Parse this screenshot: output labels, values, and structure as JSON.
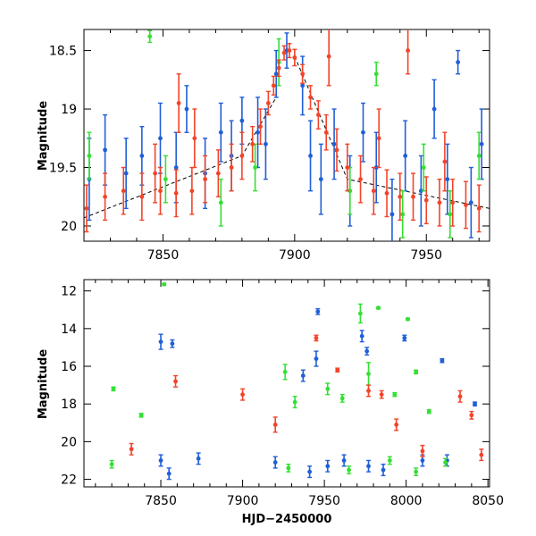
{
  "chart_data": [
    {
      "type": "scatter",
      "title": "",
      "xlabel": "",
      "ylabel": "Magnitude",
      "xlim": [
        7820,
        7974
      ],
      "ylim": [
        20.13,
        18.32
      ],
      "y_inverted": true,
      "x_ticks": [
        7850,
        7900,
        7950
      ],
      "y_ticks": [
        18.5,
        19,
        19.5,
        20
      ],
      "y_tick_labels": [
        "18.5",
        "19",
        "19.5",
        "20"
      ],
      "colors": {
        "blue": "#1f5fd8",
        "green": "#33e033",
        "red": "#f2442a"
      },
      "series": [
        {
          "color": "blue",
          "points": [
            [
              7822,
              19.6,
              0.35
            ],
            [
              7828,
              19.35,
              0.3
            ],
            [
              7836,
              19.55,
              0.3
            ],
            [
              7842,
              19.4,
              0.25
            ],
            [
              7849,
              19.25,
              0.3
            ],
            [
              7855,
              19.5,
              0.3
            ],
            [
              7859,
              19.0,
              0.2
            ],
            [
              7866,
              19.55,
              0.3
            ],
            [
              7872,
              19.2,
              0.25
            ],
            [
              7876,
              19.4,
              0.3
            ],
            [
              7880,
              19.1,
              0.2
            ],
            [
              7886,
              19.2,
              0.3
            ],
            [
              7889,
              19.3,
              0.3
            ],
            [
              7893,
              18.7,
              0.2
            ],
            [
              7897,
              18.5,
              0.15
            ],
            [
              7903,
              18.8,
              0.25
            ],
            [
              7906,
              19.4,
              0.3
            ],
            [
              7910,
              19.6,
              0.3
            ],
            [
              7915,
              19.3,
              0.3
            ],
            [
              7921,
              19.7,
              0.3
            ],
            [
              7926,
              19.2,
              0.25
            ],
            [
              7931,
              19.5,
              0.3
            ],
            [
              7937,
              19.9,
              0.3
            ],
            [
              7942,
              19.4,
              0.3
            ],
            [
              7948,
              19.7,
              0.3
            ],
            [
              7953,
              19.0,
              0.25
            ],
            [
              7958,
              19.6,
              0.3
            ],
            [
              7962,
              18.6,
              0.1
            ],
            [
              7967,
              19.8,
              0.3
            ],
            [
              7971,
              19.3,
              0.3
            ]
          ]
        },
        {
          "color": "green",
          "points": [
            [
              7845,
              18.38,
              0.05
            ],
            [
              7822,
              19.4,
              0.2
            ],
            [
              7851,
              19.6,
              0.2
            ],
            [
              7872,
              19.8,
              0.2
            ],
            [
              7885,
              19.5,
              0.2
            ],
            [
              7894,
              18.6,
              0.2
            ],
            [
              7921,
              19.7,
              0.2
            ],
            [
              7931,
              18.7,
              0.1
            ],
            [
              7941,
              19.9,
              0.2
            ],
            [
              7949,
              19.5,
              0.2
            ],
            [
              7959,
              19.9,
              0.2
            ],
            [
              7970,
              19.4,
              0.2
            ]
          ]
        },
        {
          "color": "red",
          "points": [
            [
              7821,
              19.85,
              0.2
            ],
            [
              7828,
              19.75,
              0.2
            ],
            [
              7835,
              19.7,
              0.2
            ],
            [
              7842,
              19.75,
              0.2
            ],
            [
              7849,
              19.7,
              0.2
            ],
            [
              7855,
              19.72,
              0.2
            ],
            [
              7861,
              19.7,
              0.2
            ],
            [
              7866,
              19.6,
              0.2
            ],
            [
              7871,
              19.55,
              0.2
            ],
            [
              7876,
              19.5,
              0.2
            ],
            [
              7880,
              19.4,
              0.2
            ],
            [
              7884,
              19.3,
              0.15
            ],
            [
              7887,
              19.15,
              0.15
            ],
            [
              7890,
              18.95,
              0.1
            ],
            [
              7892,
              18.8,
              0.08
            ],
            [
              7894,
              18.65,
              0.07
            ],
            [
              7896,
              18.52,
              0.06
            ],
            [
              7898,
              18.5,
              0.06
            ],
            [
              7900,
              18.56,
              0.07
            ],
            [
              7903,
              18.7,
              0.08
            ],
            [
              7906,
              18.9,
              0.1
            ],
            [
              7909,
              19.05,
              0.12
            ],
            [
              7912,
              19.2,
              0.15
            ],
            [
              7916,
              19.35,
              0.18
            ],
            [
              7920,
              19.5,
              0.2
            ],
            [
              7925,
              19.6,
              0.2
            ],
            [
              7930,
              19.7,
              0.2
            ],
            [
              7935,
              19.72,
              0.2
            ],
            [
              7940,
              19.75,
              0.2
            ],
            [
              7945,
              19.75,
              0.2
            ],
            [
              7950,
              19.78,
              0.2
            ],
            [
              7955,
              19.8,
              0.2
            ],
            [
              7960,
              19.8,
              0.2
            ],
            [
              7965,
              19.82,
              0.2
            ],
            [
              7970,
              19.85,
              0.2
            ],
            [
              7862,
              19.25,
              0.25
            ],
            [
              7856,
              18.95,
              0.25
            ],
            [
              7847,
              19.55,
              0.25
            ],
            [
              7913,
              18.55,
              0.25
            ],
            [
              7943,
              18.5,
              0.2
            ],
            [
              7932,
              19.25,
              0.25
            ],
            [
              7957,
              19.45,
              0.25
            ]
          ]
        }
      ]
    },
    {
      "type": "scatter",
      "title": "",
      "xlabel": "HJD−2450000",
      "ylabel": "Magnitude",
      "xlim": [
        7803,
        8051
      ],
      "ylim": [
        22.4,
        11.4
      ],
      "y_inverted": true,
      "x_ticks": [
        7850,
        7900,
        7950,
        8000,
        8050
      ],
      "y_ticks": [
        12,
        14,
        16,
        18,
        20,
        22
      ],
      "colors": {
        "blue": "#1f5fd8",
        "green": "#33e033",
        "red": "#f2442a"
      },
      "series": [
        {
          "color": "blue",
          "points": [
            [
              7850,
              14.7,
              0.4
            ],
            [
              7857,
              14.8,
              0.2
            ],
            [
              7946,
              13.1,
              0.15
            ],
            [
              7973,
              14.4,
              0.3
            ],
            [
              7976,
              15.2,
              0.2
            ],
            [
              7999,
              14.5,
              0.15
            ],
            [
              8022,
              15.7,
              0.1
            ],
            [
              8042,
              18.0,
              0.1
            ],
            [
              7937,
              16.5,
              0.3
            ],
            [
              7945,
              15.6,
              0.4
            ],
            [
              7850,
              21.0,
              0.3
            ],
            [
              7855,
              21.7,
              0.3
            ],
            [
              7873,
              20.9,
              0.3
            ],
            [
              7920,
              21.1,
              0.3
            ],
            [
              7941,
              21.6,
              0.3
            ],
            [
              7952,
              21.3,
              0.3
            ],
            [
              7962,
              21.0,
              0.3
            ],
            [
              7977,
              21.3,
              0.3
            ],
            [
              7986,
              21.5,
              0.3
            ],
            [
              8010,
              21.0,
              0.3
            ],
            [
              8025,
              21.0,
              0.3
            ]
          ]
        },
        {
          "color": "green",
          "points": [
            [
              7852,
              11.65,
              0.05
            ],
            [
              7821,
              17.2,
              0.1
            ],
            [
              7838,
              18.6,
              0.1
            ],
            [
              7926,
              16.3,
              0.4
            ],
            [
              7932,
              17.9,
              0.3
            ],
            [
              7952,
              17.2,
              0.3
            ],
            [
              7961,
              17.7,
              0.2
            ],
            [
              7972,
              13.2,
              0.5
            ],
            [
              7977,
              16.4,
              0.6
            ],
            [
              7983,
              12.9,
              0.05
            ],
            [
              7993,
              17.5,
              0.1
            ],
            [
              8001,
              13.5,
              0.05
            ],
            [
              8006,
              16.3,
              0.1
            ],
            [
              8014,
              18.4,
              0.1
            ],
            [
              7820,
              21.2,
              0.2
            ],
            [
              7928,
              21.4,
              0.2
            ],
            [
              7965,
              21.5,
              0.2
            ],
            [
              7990,
              21.0,
              0.2
            ],
            [
              8006,
              21.6,
              0.2
            ],
            [
              8024,
              21.1,
              0.2
            ]
          ]
        },
        {
          "color": "red",
          "points": [
            [
              7859,
              16.8,
              0.3
            ],
            [
              7945,
              14.5,
              0.15
            ],
            [
              7958,
              16.2,
              0.1
            ],
            [
              7977,
              17.3,
              0.3
            ],
            [
              7985,
              17.5,
              0.2
            ],
            [
              8033,
              17.6,
              0.3
            ],
            [
              8040,
              18.6,
              0.2
            ],
            [
              7832,
              20.4,
              0.3
            ],
            [
              7900,
              17.5,
              0.3
            ],
            [
              7920,
              19.1,
              0.4
            ],
            [
              7994,
              19.1,
              0.3
            ],
            [
              8010,
              20.5,
              0.3
            ],
            [
              8046,
              20.7,
              0.3
            ]
          ]
        }
      ]
    }
  ]
}
